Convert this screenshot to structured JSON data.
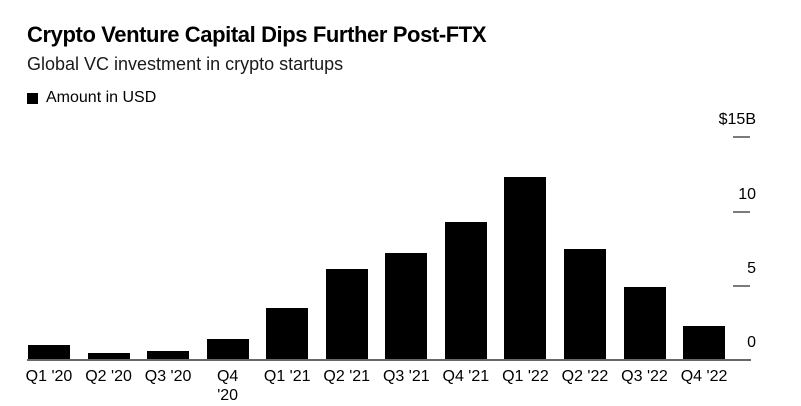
{
  "chart_data": {
    "type": "bar",
    "title": "Crypto Venture Capital Dips Further Post-FTX",
    "subtitle": "Global VC investment in crypto startups",
    "series_name": "Amount in USD",
    "unit": "billions of USD",
    "categories": [
      "Q1 '20",
      "Q2 '20",
      "Q3 '20",
      "Q4 '20",
      "Q1 '21",
      "Q2 '21",
      "Q3 '21",
      "Q4 '21",
      "Q1 '22",
      "Q2 '22",
      "Q3 '22",
      "Q4 '22"
    ],
    "x_tick_display": [
      "Q1 '20",
      "Q2 '20",
      "Q3 '20",
      "Q4\n'20",
      "Q1 '21",
      "Q2 '21",
      "Q3 '21",
      "Q4 '21",
      "Q1 '22",
      "Q2 '22",
      "Q3 '22",
      "Q4 '22"
    ],
    "values": [
      1.0,
      0.5,
      0.6,
      1.4,
      3.5,
      6.1,
      7.2,
      9.3,
      12.3,
      7.5,
      4.9,
      2.3
    ],
    "ylim": [
      0,
      15
    ],
    "y_axis": {
      "side": "right",
      "ticks": [
        0,
        5,
        10,
        15
      ],
      "tick_labels": [
        "0",
        "5",
        "10",
        "$15B"
      ]
    },
    "grid": false,
    "legend_position": "top-left",
    "bar_color": "#000000",
    "axis_line_color": "#686868",
    "tick_mark_color": "#7b7b7b"
  },
  "legend": {
    "swatch_color": "#000000"
  }
}
